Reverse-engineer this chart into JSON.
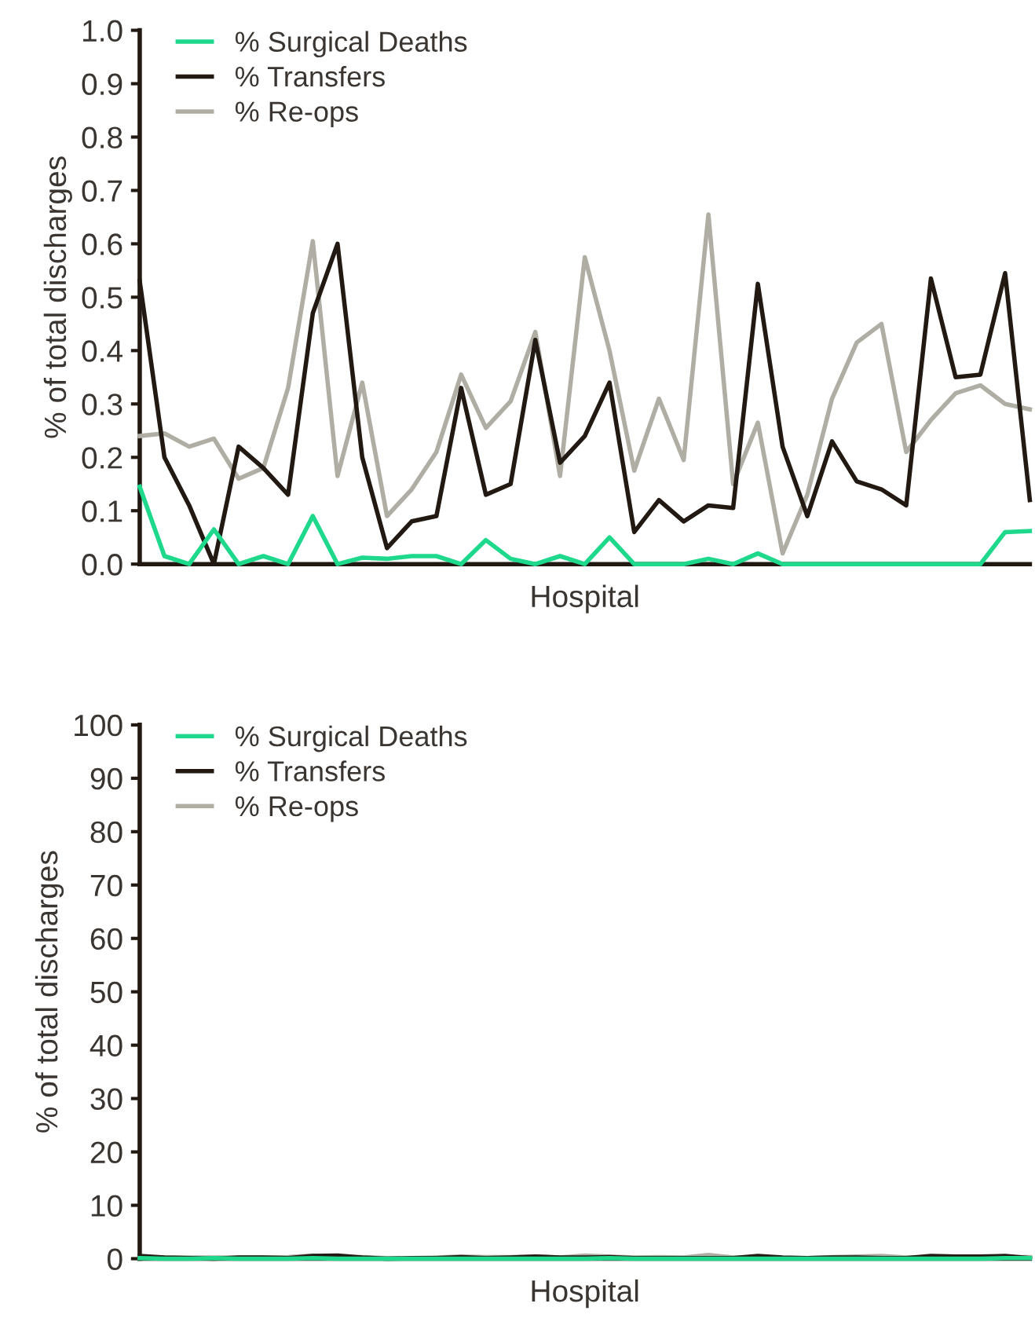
{
  "chart_data": [
    {
      "type": "line",
      "xlabel": "Hospital",
      "ylabel": "% of total discharges",
      "categories": [
        null,
        null,
        null,
        null,
        null,
        null,
        null,
        null,
        null,
        null,
        null,
        null,
        null,
        null,
        null,
        null,
        null,
        null,
        null,
        null,
        null,
        null,
        null,
        null,
        null,
        null,
        null,
        null,
        null,
        null,
        null,
        null,
        null,
        null,
        null,
        null,
        null
      ],
      "series": [
        {
          "name": "% Surgical Deaths",
          "color": "#1ed88c",
          "values": [
            0.145,
            0.015,
            0,
            0.065,
            0,
            0.015,
            0,
            0.09,
            0,
            0.012,
            0.01,
            0.015,
            0.015,
            0,
            0.045,
            0.01,
            0,
            0.015,
            0,
            0.05,
            0,
            0,
            0,
            0.01,
            0,
            0.02,
            0,
            0,
            0,
            0,
            0,
            0,
            0,
            0,
            0,
            0.06,
            0.062
          ]
        },
        {
          "name": "% Transfers",
          "color": "#221a12",
          "values": [
            0.53,
            0.2,
            0.11,
            0,
            0.22,
            0.18,
            0.13,
            0.47,
            0.6,
            0.2,
            0.03,
            0.08,
            0.09,
            0.33,
            0.13,
            0.15,
            0.42,
            0.19,
            0.24,
            0.34,
            0.06,
            0.12,
            0.08,
            0.11,
            0.105,
            0.525,
            0.22,
            0.09,
            0.23,
            0.155,
            0.14,
            0.11,
            0.535,
            0.35,
            0.355,
            0.545,
            0.12
          ]
        },
        {
          "name": "% Re-ops",
          "color": "#b0aea4",
          "values": [
            0.24,
            0.245,
            0.22,
            0.235,
            0.16,
            0.18,
            0.33,
            0.605,
            0.165,
            0.34,
            0.09,
            0.14,
            0.21,
            0.355,
            0.255,
            0.305,
            0.435,
            0.165,
            0.575,
            0.4,
            0.175,
            0.31,
            0.195,
            0.655,
            0.15,
            0.265,
            0.02,
            0.13,
            0.31,
            0.415,
            0.45,
            0.21,
            0.27,
            0.32,
            0.335,
            0.3,
            0.29
          ]
        }
      ],
      "ylim": [
        0,
        1
      ],
      "yticks": [
        {
          "value": 0,
          "label": "0.0"
        },
        {
          "value": 0.1,
          "label": "0.1"
        },
        {
          "value": 0.2,
          "label": "0.2"
        },
        {
          "value": 0.3,
          "label": "0.3"
        },
        {
          "value": 0.4,
          "label": "0.4"
        },
        {
          "value": 0.5,
          "label": "0.5"
        },
        {
          "value": 0.6,
          "label": "0.6"
        },
        {
          "value": 0.7,
          "label": "0.7"
        },
        {
          "value": 0.8,
          "label": "0.8"
        },
        {
          "value": 0.9,
          "label": "0.9"
        },
        {
          "value": 1,
          "label": "1.0"
        }
      ],
      "grid": false,
      "legend": "top left",
      "marker": "none",
      "line_style": "solid"
    },
    {
      "type": "line",
      "xlabel": "Hospital",
      "ylabel": "% of total discharges",
      "categories": [
        null,
        null,
        null,
        null,
        null,
        null,
        null,
        null,
        null,
        null,
        null,
        null,
        null,
        null,
        null,
        null,
        null,
        null,
        null,
        null,
        null,
        null,
        null,
        null,
        null,
        null,
        null,
        null,
        null,
        null,
        null,
        null,
        null,
        null,
        null,
        null,
        null
      ],
      "series": [
        {
          "name": "% Surgical Deaths",
          "color": "#1ed88c",
          "values": [
            0.1,
            0,
            0,
            0.1,
            0,
            0,
            0,
            0.1,
            0,
            0,
            0,
            0,
            0,
            0,
            0,
            0,
            0,
            0,
            0,
            0.1,
            0,
            0,
            0,
            0,
            0,
            0,
            0,
            0,
            0,
            0,
            0,
            0,
            0,
            0,
            0,
            0.1,
            0.1
          ]
        },
        {
          "name": "% Transfers",
          "color": "#221a12",
          "values": [
            0.5,
            0.2,
            0.1,
            0,
            0.2,
            0.2,
            0.1,
            0.5,
            0.6,
            0.2,
            0,
            0.1,
            0.1,
            0.3,
            0.1,
            0.2,
            0.4,
            0.2,
            0.2,
            0.3,
            0.1,
            0.1,
            0.1,
            0.1,
            0.1,
            0.5,
            0.2,
            0.1,
            0.2,
            0.2,
            0.1,
            0.1,
            0.5,
            0.4,
            0.4,
            0.5,
            0.1
          ]
        },
        {
          "name": "% Re-ops",
          "color": "#b0aea4",
          "values": [
            0.2,
            0.2,
            0.2,
            0.2,
            0.2,
            0.2,
            0.3,
            0.6,
            0.2,
            0.3,
            0.1,
            0.1,
            0.2,
            0.4,
            0.3,
            0.3,
            0.4,
            0.2,
            0.6,
            0.4,
            0.2,
            0.3,
            0.2,
            0.7,
            0.2,
            0.3,
            0,
            0.1,
            0.3,
            0.4,
            0.5,
            0.2,
            0.3,
            0.3,
            0.3,
            0.3,
            0.3
          ]
        }
      ],
      "ylim": [
        0,
        100
      ],
      "yticks": [
        0,
        10,
        20,
        30,
        40,
        50,
        60,
        70,
        80,
        90,
        100
      ],
      "grid": false,
      "legend": "top left",
      "marker": "none",
      "line_style": "solid"
    }
  ]
}
